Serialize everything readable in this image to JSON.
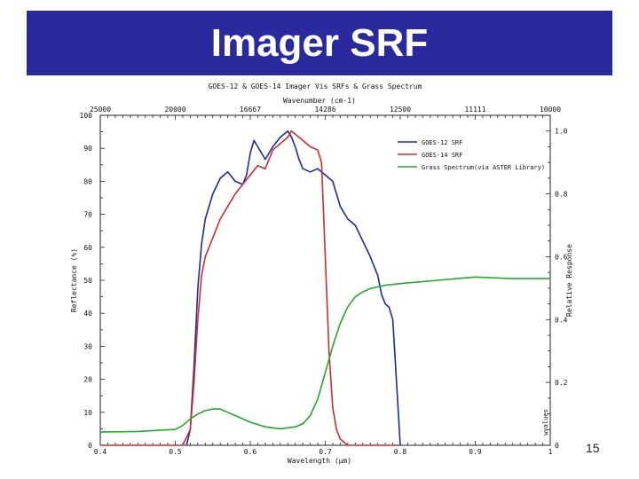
{
  "slide": {
    "title": "Imager SRF",
    "page_number": "15"
  },
  "chart_data": {
    "type": "line",
    "title": "GOES-12 & GOES-14 Imager Vis SRFs & Grass Spectrum",
    "xlabel": "Wavelength (μm)",
    "top_axis_label": "Wavenumber (cm-1)",
    "ylabel_left": "Reflectance (%)",
    "ylabel_right": "Relative Response",
    "watermark": "wvalues",
    "xlim": [
      0.4,
      1.0
    ],
    "ylim_left": [
      0,
      100
    ],
    "ylim_right": [
      0,
      1.05
    ],
    "x_ticks": [
      {
        "v": 0.4,
        "label": "0.4"
      },
      {
        "v": 0.5,
        "label": "0.5"
      },
      {
        "v": 0.6,
        "label": "0.6"
      },
      {
        "v": 0.7,
        "label": "0.7"
      },
      {
        "v": 0.8,
        "label": "0.8"
      },
      {
        "v": 0.9,
        "label": "0.9"
      },
      {
        "v": 1.0,
        "label": "1"
      }
    ],
    "left_ticks": [
      {
        "v": 0,
        "label": "0"
      },
      {
        "v": 10,
        "label": "10"
      },
      {
        "v": 20,
        "label": "20"
      },
      {
        "v": 30,
        "label": "30"
      },
      {
        "v": 40,
        "label": "40"
      },
      {
        "v": 50,
        "label": "50"
      },
      {
        "v": 60,
        "label": "60"
      },
      {
        "v": 70,
        "label": "70"
      },
      {
        "v": 80,
        "label": "80"
      },
      {
        "v": 90,
        "label": "90"
      },
      {
        "v": 100,
        "label": "100"
      }
    ],
    "right_ticks": [
      {
        "v": 0,
        "label": "0"
      },
      {
        "v": 0.2,
        "label": "0.2"
      },
      {
        "v": 0.4,
        "label": "0.4"
      },
      {
        "v": 0.6,
        "label": "0.6"
      },
      {
        "v": 0.8,
        "label": "0.8"
      },
      {
        "v": 1.0,
        "label": "1.0"
      }
    ],
    "top_ticks": [
      {
        "v": 0.4,
        "label": "25000"
      },
      {
        "v": 0.5,
        "label": "20000"
      },
      {
        "v": 0.6,
        "label": "16667"
      },
      {
        "v": 0.7,
        "label": "14286"
      },
      {
        "v": 0.8,
        "label": "12500"
      },
      {
        "v": 0.9,
        "label": "11111"
      },
      {
        "v": 1.0,
        "label": "10000"
      }
    ],
    "series": [
      {
        "name": "GOES-12 SRF",
        "color": "#1a2aa8",
        "axis": "right",
        "x": [
          0.515,
          0.52,
          0.525,
          0.53,
          0.535,
          0.54,
          0.55,
          0.56,
          0.57,
          0.58,
          0.59,
          0.595,
          0.6,
          0.605,
          0.61,
          0.62,
          0.63,
          0.64,
          0.65,
          0.655,
          0.66,
          0.665,
          0.67,
          0.68,
          0.69,
          0.7,
          0.71,
          0.72,
          0.73,
          0.74,
          0.75,
          0.76,
          0.77,
          0.775,
          0.78,
          0.785,
          0.79,
          0.795,
          0.8
        ],
        "y": [
          0.0,
          0.05,
          0.25,
          0.5,
          0.64,
          0.72,
          0.8,
          0.85,
          0.87,
          0.84,
          0.83,
          0.86,
          0.93,
          0.97,
          0.95,
          0.91,
          0.95,
          0.98,
          1.0,
          0.98,
          0.95,
          0.91,
          0.88,
          0.87,
          0.88,
          0.86,
          0.84,
          0.76,
          0.72,
          0.7,
          0.65,
          0.6,
          0.54,
          0.48,
          0.45,
          0.44,
          0.4,
          0.2,
          0.0
        ]
      },
      {
        "name": "GOES-14 SRF",
        "color": "#d42a2a",
        "axis": "right",
        "x": [
          0.4,
          0.51,
          0.52,
          0.525,
          0.53,
          0.535,
          0.54,
          0.55,
          0.56,
          0.57,
          0.58,
          0.59,
          0.6,
          0.61,
          0.62,
          0.63,
          0.64,
          0.65,
          0.655,
          0.66,
          0.67,
          0.68,
          0.69,
          0.695,
          0.7,
          0.705,
          0.71,
          0.715,
          0.72,
          0.73,
          0.74,
          0.75,
          0.8
        ],
        "y": [
          0.0,
          0.0,
          0.05,
          0.2,
          0.4,
          0.54,
          0.6,
          0.66,
          0.72,
          0.76,
          0.8,
          0.83,
          0.86,
          0.89,
          0.88,
          0.94,
          0.96,
          0.98,
          1.0,
          0.99,
          0.97,
          0.95,
          0.94,
          0.9,
          0.6,
          0.3,
          0.12,
          0.05,
          0.02,
          0.0,
          0.0,
          0.0,
          0.0
        ]
      },
      {
        "name": "Grass Spectrum(via ASTER Library)",
        "color": "#1faa2a",
        "axis": "left",
        "x": [
          0.4,
          0.45,
          0.5,
          0.51,
          0.52,
          0.53,
          0.54,
          0.55,
          0.56,
          0.57,
          0.58,
          0.6,
          0.62,
          0.64,
          0.66,
          0.67,
          0.68,
          0.69,
          0.7,
          0.71,
          0.72,
          0.73,
          0.74,
          0.75,
          0.76,
          0.78,
          0.8,
          0.85,
          0.9,
          0.95,
          1.0
        ],
        "y": [
          4.0,
          4.2,
          4.8,
          6.0,
          8.0,
          9.5,
          10.5,
          11.0,
          11.0,
          10.0,
          9.0,
          7.0,
          5.6,
          5.0,
          5.6,
          6.5,
          9.0,
          14.0,
          22.0,
          30.0,
          37.0,
          42.0,
          45.0,
          46.5,
          47.5,
          48.5,
          49.0,
          50.0,
          51.0,
          50.5,
          50.5
        ]
      }
    ],
    "legend_position": "top-right",
    "grid": false
  }
}
